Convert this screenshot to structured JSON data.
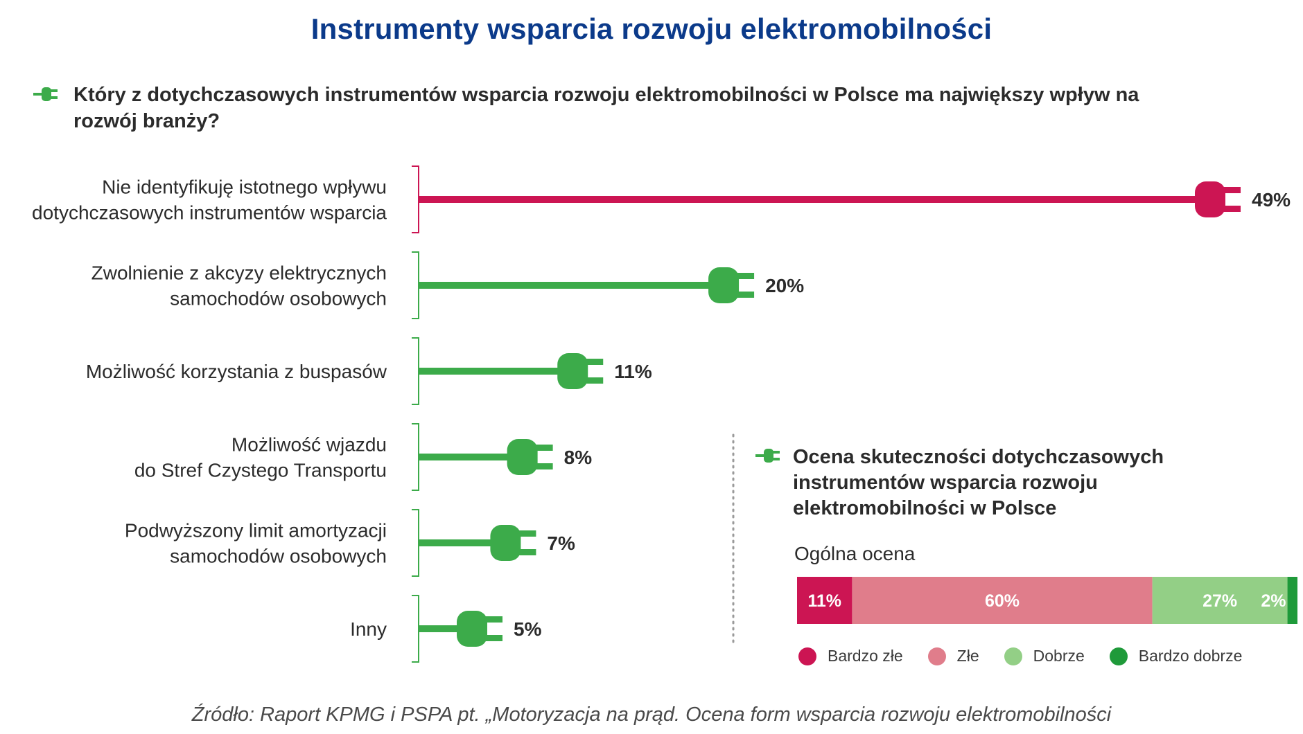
{
  "title": "Instrumenty wsparcia rozwoju elektromobilności",
  "question": "Który z dotychczasowych instrumentów wsparcia rozwoju elektromobilności w Polsce ma największy wpływ na rozwój branży?",
  "colors": {
    "pink": "#cc1553",
    "green": "#3cab4a",
    "light_pink": "#e07d8b",
    "light_green": "#93cf86",
    "dark_green": "#1f9a3a",
    "title_blue": "#0b3a8a"
  },
  "chart_data": [
    {
      "type": "bar",
      "orientation": "horizontal",
      "title": "Który z dotychczasowych instrumentów wsparcia rozwoju elektromobilności w Polsce ma największy wpływ na rozwój branży?",
      "categories": [
        "Nie identyfikuję istotnego wpływu dotychczasowych instrumentów wsparcia",
        "Zwolnienie z akcyzy elektrycznych samochodów osobowych",
        "Możliwość korzystania z buspasów",
        "Możliwość wjazdu do Stref Czystego Transportu",
        "Podwyższony limit amortyzacji samochodów osobowych",
        "Inny"
      ],
      "category_lines": [
        [
          "Nie identyfikuję istotnego wpływu",
          "dotychczasowych instrumentów wsparcia"
        ],
        [
          "Zwolnienie z akcyzy elektrycznych",
          "samochodów osobowych"
        ],
        [
          "Możliwość korzystania z buspasów"
        ],
        [
          "Możliwość wjazdu",
          "do Stref Czystego Transportu"
        ],
        [
          "Podwyższony limit amortyzacji",
          "samochodów osobowych"
        ],
        [
          "Inny"
        ]
      ],
      "values": [
        49,
        20,
        11,
        8,
        7,
        5
      ],
      "labels": [
        "49%",
        "20%",
        "11%",
        "8%",
        "7%",
        "5%"
      ],
      "unit": "%",
      "highlight_index": 0
    },
    {
      "type": "bar",
      "orientation": "horizontal-stacked",
      "title": "Ocena skuteczności dotychczasowych instrumentów wsparcia rozwoju elektromobilności w Polsce",
      "category": "Ogólna ocena",
      "series": [
        {
          "name": "Bardzo złe",
          "value": 11,
          "label": "11%",
          "color": "#cc1553"
        },
        {
          "name": "Złe",
          "value": 60,
          "label": "60%",
          "color": "#e07d8b"
        },
        {
          "name": "Dobrze",
          "value": 27,
          "label": "27%",
          "color": "#93cf86"
        },
        {
          "name": "Bardzo dobrze",
          "value": 2,
          "label": "2%",
          "color": "#1f9a3a"
        }
      ],
      "legend_position": "bottom"
    }
  ],
  "subpanel": {
    "title_lines": [
      "Ocena skuteczności dotychczasowych",
      "instrumentów wsparcia rozwoju",
      "elektromobilności w Polsce"
    ],
    "overall_label": "Ogólna ocena"
  },
  "legend": [
    "Bardzo złe",
    "Złe",
    "Dobrze",
    "Bardzo dobrze"
  ],
  "source": "Źródło: Raport KPMG i PSPA pt. „Motoryzacja na prąd. Ocena form wsparcia rozwoju elektromobilności"
}
